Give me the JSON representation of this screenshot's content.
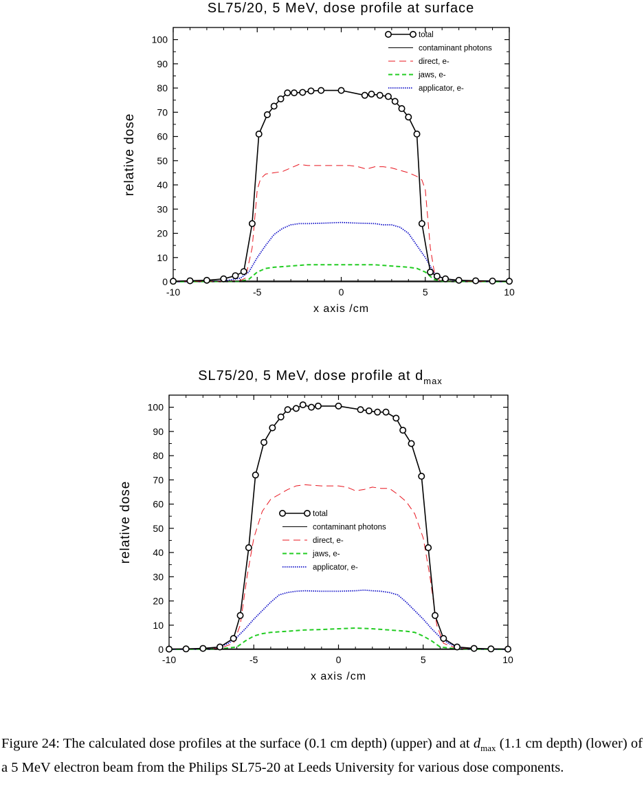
{
  "legend_labels": {
    "total": "total",
    "photons": "contaminant photons",
    "direct": "direct, e-",
    "jaws": "jaws, e-",
    "applicator": "applicator, e-"
  },
  "colors": {
    "total": "#000000",
    "photons": "#000000",
    "direct": "#e8141e",
    "jaws": "#22cc22",
    "applicator": "#1010c8"
  },
  "chart_data": [
    {
      "type": "line",
      "title": "SL75/20, 5 MeV, dose profile at surface",
      "title_sub": "",
      "xlabel": "x axis /cm",
      "ylabel": "relative dose",
      "xlim": [
        -10,
        10
      ],
      "ylim": [
        0,
        105
      ],
      "xticks": [
        -10,
        -5,
        0,
        5,
        10
      ],
      "yticks": [
        0,
        10,
        20,
        30,
        40,
        50,
        60,
        70,
        80,
        90,
        100
      ],
      "grid": false,
      "legend_position": "top-right",
      "series": [
        {
          "name": "total",
          "style": "line-circle",
          "x": [
            -10,
            -9,
            -8,
            -7,
            -6.3,
            -5.8,
            -5.3,
            -4.9,
            -4.4,
            -4,
            -3.6,
            -3.2,
            -2.8,
            -2.3,
            -1.8,
            -1.2,
            0,
            1.4,
            1.8,
            2.3,
            2.8,
            3.2,
            3.6,
            4,
            4.5,
            4.8,
            5.3,
            5.7,
            6.2,
            7,
            8,
            9,
            10
          ],
          "y": [
            0.2,
            0.4,
            0.6,
            1.2,
            2.5,
            4.2,
            24,
            61,
            69,
            72.5,
            75.5,
            78,
            78,
            78.2,
            78.8,
            79,
            79,
            77,
            77.5,
            77,
            76.5,
            74.5,
            71.5,
            68,
            61,
            24,
            4,
            2.3,
            1.2,
            0.6,
            0.4,
            0.3,
            0.2
          ]
        },
        {
          "name": "contaminant photons",
          "style": "solid-thin",
          "x": [
            -10,
            -5,
            0,
            5,
            10
          ],
          "y": [
            0.3,
            0.3,
            0.3,
            0.3,
            0.3
          ]
        },
        {
          "name": "direct, e-",
          "style": "dashed",
          "x": [
            -10,
            -7,
            -6,
            -5.7,
            -5.3,
            -5,
            -4.8,
            -4.5,
            -4,
            -3.5,
            -3,
            -2.5,
            -2,
            -1,
            0,
            0.5,
            1,
            1.5,
            2,
            2.5,
            3,
            3.5,
            4,
            4.5,
            4.8,
            5,
            5.3,
            5.6,
            6,
            7,
            10
          ],
          "y": [
            0.1,
            0.2,
            0.5,
            1.5,
            14,
            38,
            42.5,
            44.5,
            45,
            45.5,
            47,
            48.5,
            48,
            48,
            48,
            48,
            47.5,
            46.5,
            47.5,
            47.5,
            47,
            46,
            45,
            43.5,
            42,
            38,
            14,
            1.5,
            0.3,
            0.2,
            0.1
          ]
        },
        {
          "name": "jaws, e-",
          "style": "dashed-short",
          "x": [
            -10,
            -6,
            -5.5,
            -5,
            -4.5,
            -4,
            -3,
            -2,
            0,
            2,
            3,
            4,
            4.5,
            5,
            5.5,
            6,
            10
          ],
          "y": [
            0,
            0.2,
            1,
            4,
            5.5,
            6,
            6.5,
            7,
            7,
            7,
            6.5,
            6,
            5.5,
            4,
            1,
            0.2,
            0
          ]
        },
        {
          "name": "applicator, e-",
          "style": "dotted",
          "x": [
            -10,
            -7,
            -6,
            -5.5,
            -5,
            -4.5,
            -4,
            -3.5,
            -3,
            -2.5,
            -2,
            -1,
            0,
            1,
            2,
            2.5,
            3,
            3.5,
            4,
            4.5,
            5,
            5.5,
            6,
            7,
            10
          ],
          "y": [
            0,
            0.3,
            1.5,
            4,
            10,
            15,
            19.5,
            22,
            23.5,
            24,
            24,
            24.2,
            24.5,
            24.2,
            24,
            23.5,
            23.5,
            22.5,
            20,
            15,
            10,
            4,
            1.5,
            0.3,
            0
          ]
        }
      ]
    },
    {
      "type": "line",
      "title": "SL75/20, 5 MeV, dose profile at d",
      "title_sub": "max",
      "xlabel": "x axis /cm",
      "ylabel": "relative dose",
      "xlim": [
        -10,
        10
      ],
      "ylim": [
        0,
        105
      ],
      "xticks": [
        -10,
        -5,
        0,
        5,
        10
      ],
      "yticks": [
        0,
        10,
        20,
        30,
        40,
        50,
        60,
        70,
        80,
        90,
        100
      ],
      "grid": false,
      "legend_position": "center-left",
      "series": [
        {
          "name": "total",
          "style": "line-circle",
          "x": [
            -10,
            -9,
            -8,
            -7,
            -6.2,
            -5.8,
            -5.3,
            -4.9,
            -4.4,
            -3.9,
            -3.4,
            -3,
            -2.5,
            -2.1,
            -1.6,
            -1.2,
            0,
            1.3,
            1.8,
            2.3,
            2.8,
            3.4,
            3.8,
            4.3,
            4.9,
            5.3,
            5.7,
            6.2,
            7,
            8,
            9,
            10
          ],
          "y": [
            0.1,
            0.2,
            0.4,
            1,
            4.5,
            14,
            42,
            72,
            85.5,
            91.5,
            96,
            99,
            99.5,
            101,
            100,
            100.5,
            100.5,
            99,
            98.5,
            98,
            98,
            95.5,
            90.5,
            85,
            71.5,
            42,
            14,
            4.5,
            1,
            0.4,
            0.2,
            0.1
          ]
        },
        {
          "name": "contaminant photons",
          "style": "solid-thin",
          "x": [
            -10,
            -5,
            0,
            5,
            10
          ],
          "y": [
            0.2,
            0.2,
            0.2,
            0.2,
            0.2
          ]
        },
        {
          "name": "direct, e-",
          "style": "dashed",
          "x": [
            -10,
            -7,
            -6.2,
            -5.8,
            -5.4,
            -5,
            -4.5,
            -4,
            -3.5,
            -3,
            -2.5,
            -2,
            -1,
            0,
            0.5,
            1,
            1.5,
            2,
            2.5,
            3,
            3.5,
            4,
            4.5,
            5,
            5.4,
            5.8,
            6.2,
            7,
            10
          ],
          "y": [
            0.1,
            0.4,
            2.5,
            10,
            30,
            46,
            57,
            62,
            64,
            66,
            67.5,
            68,
            67.5,
            67.5,
            67,
            65.5,
            66,
            67,
            66.5,
            66.5,
            64,
            61,
            56,
            46,
            30,
            10,
            2.5,
            0.4,
            0.1
          ]
        },
        {
          "name": "jaws, e-",
          "style": "dashed-short",
          "x": [
            -10,
            -7,
            -6,
            -5.5,
            -5,
            -4.5,
            -4,
            -3,
            -2,
            -1,
            0,
            1,
            2,
            3,
            4,
            4.5,
            5,
            5.5,
            6,
            7,
            10
          ],
          "y": [
            0,
            0.2,
            1,
            3.5,
            5.5,
            6.5,
            7,
            7.5,
            8,
            8.2,
            8.5,
            8.8,
            8.5,
            8,
            7.5,
            7,
            5.5,
            3.5,
            1,
            0.2,
            0
          ]
        },
        {
          "name": "applicator, e-",
          "style": "dotted",
          "x": [
            -10,
            -7.5,
            -7,
            -6.5,
            -6,
            -5.5,
            -5,
            -4.5,
            -4,
            -3.5,
            -3,
            -2.5,
            -2,
            -1,
            0,
            1,
            1.5,
            2,
            2.5,
            3,
            3.5,
            4,
            4.5,
            5,
            5.5,
            6,
            6.5,
            7,
            7.5,
            10
          ],
          "y": [
            0,
            0.2,
            1,
            2.5,
            5,
            8.5,
            12.5,
            16,
            19.5,
            22.5,
            23.5,
            24,
            24.2,
            24,
            24,
            24.2,
            24.5,
            24.2,
            24,
            23.5,
            22.5,
            19.5,
            16,
            12.5,
            8.5,
            5,
            2.5,
            1,
            0.2,
            0
          ]
        }
      ]
    }
  ],
  "caption": {
    "line1": "Figure 24: The calculated dose profiles at the surface (0.1 cm depth) (upper) and at ",
    "italic_d": "d",
    "sub": "max",
    "line1_end": " (1.1",
    "line2": "cm depth) (lower) of a 5 MeV electron beam from the Philips SL75-20 at Leeds University",
    "line3": "for various dose components."
  }
}
